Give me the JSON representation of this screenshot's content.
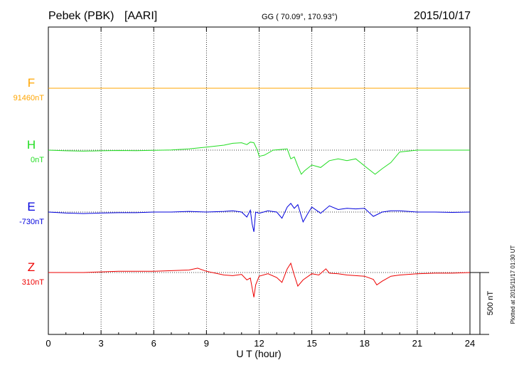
{
  "header": {
    "station": "Pebek (PBK)",
    "institute": "[AARI]",
    "coords": "GG ( 70.09°, 170.93°)",
    "date": "2015/10/17"
  },
  "footer": {
    "plotted": "Plotted at 2015/11/17 01:30 UT"
  },
  "chart_data": {
    "type": "line",
    "title": "Pebek (PBK)  [AARI]",
    "xlabel": "U T (hour)",
    "ylabel": "",
    "xlim": [
      0,
      24
    ],
    "xticks": [
      0,
      3,
      6,
      9,
      12,
      15,
      18,
      21,
      24
    ],
    "scale_bar": {
      "label": "500 nT",
      "value": 500
    },
    "grid": true,
    "series": [
      {
        "name": "F",
        "baseline": "91460nT",
        "color": "#ffa500",
        "points": [
          [
            0,
            0
          ],
          [
            24,
            0
          ]
        ]
      },
      {
        "name": "H",
        "baseline": "0nT",
        "color": "#22dd22",
        "points": [
          [
            0,
            0
          ],
          [
            1,
            -5
          ],
          [
            2,
            -8
          ],
          [
            3,
            -5
          ],
          [
            4,
            -3
          ],
          [
            5,
            -4
          ],
          [
            6,
            -2
          ],
          [
            7,
            2
          ],
          [
            8,
            10
          ],
          [
            9,
            25
          ],
          [
            10,
            40
          ],
          [
            10.5,
            55
          ],
          [
            11,
            60
          ],
          [
            11.3,
            45
          ],
          [
            11.5,
            65
          ],
          [
            11.7,
            60
          ],
          [
            11.9,
            0
          ],
          [
            12,
            -50
          ],
          [
            12.3,
            -40
          ],
          [
            12.8,
            0
          ],
          [
            13.2,
            5
          ],
          [
            13.6,
            10
          ],
          [
            13.8,
            -70
          ],
          [
            14.0,
            -55
          ],
          [
            14.2,
            -130
          ],
          [
            14.4,
            -195
          ],
          [
            14.6,
            -165
          ],
          [
            15,
            -120
          ],
          [
            15.5,
            -140
          ],
          [
            16,
            -85
          ],
          [
            16.5,
            -70
          ],
          [
            17,
            -85
          ],
          [
            17.5,
            -70
          ],
          [
            18.2,
            -150
          ],
          [
            18.6,
            -195
          ],
          [
            19,
            -150
          ],
          [
            19.5,
            -100
          ],
          [
            20,
            -15
          ],
          [
            21,
            0
          ],
          [
            22,
            0
          ],
          [
            23,
            0
          ],
          [
            24,
            0
          ]
        ]
      },
      {
        "name": "E",
        "baseline": "-730nT",
        "color": "#0000dd",
        "points": [
          [
            0,
            0
          ],
          [
            1,
            -8
          ],
          [
            2,
            -12
          ],
          [
            3,
            -8
          ],
          [
            4,
            -5
          ],
          [
            5,
            -5
          ],
          [
            6,
            0
          ],
          [
            7,
            0
          ],
          [
            8,
            5
          ],
          [
            9,
            0
          ],
          [
            10,
            5
          ],
          [
            10.5,
            10
          ],
          [
            11,
            0
          ],
          [
            11.3,
            -40
          ],
          [
            11.5,
            15
          ],
          [
            11.6,
            -95
          ],
          [
            11.7,
            -160
          ],
          [
            11.8,
            0
          ],
          [
            12,
            -10
          ],
          [
            12.5,
            10
          ],
          [
            13,
            0
          ],
          [
            13.3,
            -50
          ],
          [
            13.6,
            40
          ],
          [
            13.8,
            70
          ],
          [
            14,
            30
          ],
          [
            14.2,
            60
          ],
          [
            14.5,
            -80
          ],
          [
            14.8,
            -5
          ],
          [
            15,
            40
          ],
          [
            15.5,
            -10
          ],
          [
            16,
            50
          ],
          [
            16.5,
            20
          ],
          [
            17,
            30
          ],
          [
            17.5,
            25
          ],
          [
            18,
            30
          ],
          [
            18.5,
            -35
          ],
          [
            19,
            0
          ],
          [
            19.5,
            10
          ],
          [
            20,
            10
          ],
          [
            21,
            0
          ],
          [
            22,
            0
          ],
          [
            23,
            -3
          ],
          [
            24,
            0
          ]
        ]
      },
      {
        "name": "Z",
        "baseline": "310nT",
        "color": "#ee0000",
        "points": [
          [
            0,
            0
          ],
          [
            1,
            0
          ],
          [
            2,
            0
          ],
          [
            3,
            5
          ],
          [
            4,
            10
          ],
          [
            5,
            10
          ],
          [
            6,
            10
          ],
          [
            7,
            15
          ],
          [
            8,
            20
          ],
          [
            8.5,
            35
          ],
          [
            9,
            10
          ],
          [
            10,
            -20
          ],
          [
            10.5,
            -25
          ],
          [
            11,
            -15
          ],
          [
            11.3,
            -60
          ],
          [
            11.5,
            -45
          ],
          [
            11.7,
            -200
          ],
          [
            11.8,
            -100
          ],
          [
            12,
            -30
          ],
          [
            12.5,
            -10
          ],
          [
            13,
            -40
          ],
          [
            13.3,
            -80
          ],
          [
            13.6,
            30
          ],
          [
            13.8,
            75
          ],
          [
            14,
            -20
          ],
          [
            14.2,
            -110
          ],
          [
            14.5,
            -60
          ],
          [
            15,
            -10
          ],
          [
            15.4,
            -20
          ],
          [
            15.8,
            30
          ],
          [
            16,
            -5
          ],
          [
            16.5,
            -10
          ],
          [
            17,
            -20
          ],
          [
            17.5,
            -25
          ],
          [
            18,
            -30
          ],
          [
            18.5,
            -55
          ],
          [
            18.7,
            -100
          ],
          [
            19,
            -70
          ],
          [
            19.5,
            -30
          ],
          [
            20,
            -20
          ],
          [
            21,
            -10
          ],
          [
            22,
            -5
          ],
          [
            23,
            -5
          ],
          [
            24,
            0
          ]
        ]
      }
    ]
  }
}
